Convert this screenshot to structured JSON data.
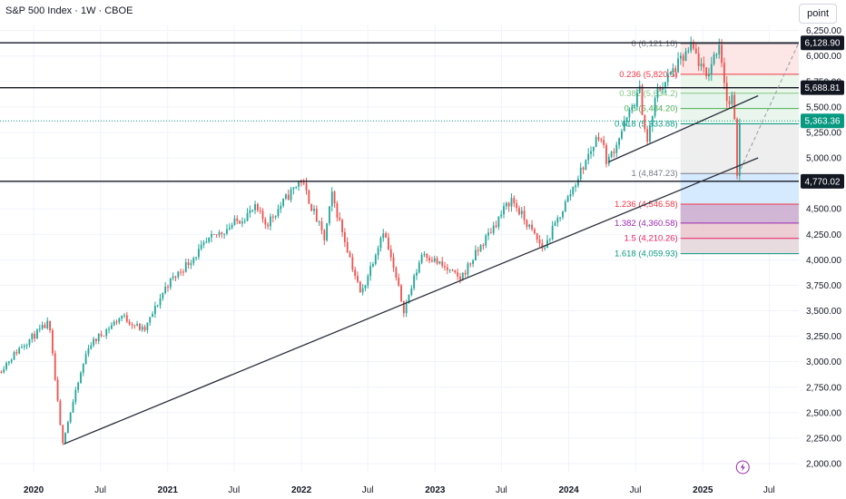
{
  "header": {
    "title": "S&P 500 Index · 1W · CBOE",
    "unit_button": "point"
  },
  "colors": {
    "up": "#26a69a",
    "down": "#ef5350",
    "line": "#131722",
    "grid": "#f0f3fa"
  },
  "chart_data": {
    "type": "candlestick",
    "title": "S&P 500 Index · 1W · CBOE",
    "y_axis": {
      "ticks": [
        2000,
        2250,
        2500,
        2750,
        3000,
        3250,
        3500,
        3750,
        4000,
        4250,
        4500,
        4750,
        5000,
        5250,
        5500,
        5750,
        6000,
        6250
      ],
      "tick_labels": [
        "2,000.00",
        "2,250.00",
        "2,500.00",
        "2,750.00",
        "3,000.00",
        "3,250.00",
        "3,500.00",
        "3,750.00",
        "4,000.00",
        "4,250.00",
        "4,500.00",
        "4,750.00",
        "5,000.00",
        "5,250.00",
        "5,500.00",
        "5,750.00",
        "6,000.00",
        "6,250.00"
      ],
      "range": [
        1920,
        6300
      ]
    },
    "x_axis": {
      "range": [
        "2019-10-01",
        "2025-09-20"
      ],
      "ticks": [
        {
          "date": "2020-01-01",
          "label": "2020",
          "major": true
        },
        {
          "date": "2020-07-01",
          "label": "Jul",
          "major": false
        },
        {
          "date": "2021-01-01",
          "label": "2021",
          "major": true
        },
        {
          "date": "2021-07-01",
          "label": "Jul",
          "major": false
        },
        {
          "date": "2022-01-01",
          "label": "2022",
          "major": true
        },
        {
          "date": "2022-07-01",
          "label": "Jul",
          "major": false
        },
        {
          "date": "2023-01-01",
          "label": "2023",
          "major": true
        },
        {
          "date": "2023-07-01",
          "label": "Jul",
          "major": false
        },
        {
          "date": "2024-01-01",
          "label": "2024",
          "major": true
        },
        {
          "date": "2024-07-01",
          "label": "Jul",
          "major": false
        },
        {
          "date": "2025-01-01",
          "label": "2025",
          "major": true
        },
        {
          "date": "2025-07-01",
          "label": "Jul",
          "major": false
        }
      ]
    },
    "price_path": [
      [
        "2019-10-01",
        2900
      ],
      [
        "2019-12-01",
        3150
      ],
      [
        "2020-02-15",
        3380
      ],
      [
        "2020-03-22",
        2200
      ],
      [
        "2020-06-01",
        3150
      ],
      [
        "2020-09-01",
        3450
      ],
      [
        "2020-11-01",
        3300
      ],
      [
        "2021-01-01",
        3750
      ],
      [
        "2021-05-01",
        4200
      ],
      [
        "2021-09-01",
        4500
      ],
      [
        "2021-10-01",
        4350
      ],
      [
        "2022-01-03",
        4790
      ],
      [
        "2022-03-08",
        4200
      ],
      [
        "2022-03-29",
        4630
      ],
      [
        "2022-06-16",
        3650
      ],
      [
        "2022-08-16",
        4300
      ],
      [
        "2022-10-12",
        3500
      ],
      [
        "2022-12-01",
        4080
      ],
      [
        "2023-03-13",
        3810
      ],
      [
        "2023-07-31",
        4600
      ],
      [
        "2023-10-27",
        4100
      ],
      [
        "2024-03-28",
        5250
      ],
      [
        "2024-04-19",
        4950
      ],
      [
        "2024-07-16",
        5660
      ],
      [
        "2024-08-05",
        5130
      ],
      [
        "2024-09-01",
        5650
      ],
      [
        "2024-12-06",
        6090
      ],
      [
        "2025-01-13",
        5780
      ],
      [
        "2025-02-19",
        6140
      ],
      [
        "2025-03-13",
        5500
      ],
      [
        "2025-03-28",
        5600
      ],
      [
        "2025-04-08",
        4850
      ],
      [
        "2025-04-11",
        5363
      ]
    ],
    "last_price": 5363.36,
    "horizontal_levels": [
      6128.9,
      5688.81,
      4770.02
    ],
    "trendlines": [
      {
        "from": [
          "2020-03-23",
          2192
        ],
        "to": [
          "2025-06-01",
          5000
        ]
      },
      {
        "from": [
          "2024-04-19",
          4960
        ],
        "to": [
          "2025-06-01",
          5610
        ]
      },
      {
        "from": [
          "2025-04-07",
          4835
        ],
        "to": [
          "2025-09-20",
          6130
        ],
        "dashed": true
      }
    ],
    "fibonacci": {
      "start_date": "2024-11-01",
      "end_date": "2025-09-20",
      "levels": [
        {
          "ratio": "0",
          "value": 6121.18,
          "label": "0 (6,121.18)",
          "color": "#787b86",
          "fill": "#fde2e2"
        },
        {
          "ratio": "0.236",
          "value": 5820.5,
          "label": "0.236 (5,820.5)",
          "color": "#f23645",
          "fill": "#e8f5e9"
        },
        {
          "ratio": "0.382",
          "value": 5634.2,
          "label": "0.382 (5,634.2)",
          "color": "#81c784",
          "fill": "#e0f2e9"
        },
        {
          "ratio": "0.5",
          "value": 5484.2,
          "label": "0.5 (5,484.20)",
          "color": "#4caf50",
          "fill": "#e6f4ea"
        },
        {
          "ratio": "0.618",
          "value": 5333.88,
          "label": "0.618 (5,333.88)",
          "color": "#089981",
          "fill": "#ebebeb"
        },
        {
          "ratio": "1",
          "value": 4847.23,
          "label": "1 (4,847.23)",
          "color": "#787b86",
          "fill": "#cfe6ff"
        },
        {
          "ratio": "1.236",
          "value": 4546.58,
          "label": "1.236 (4,546.58)",
          "color": "#f23645",
          "fill": "#c9a9cf"
        },
        {
          "ratio": "1.382",
          "value": 4360.58,
          "label": "1.382 (4,360.58)",
          "color": "#9c27b0",
          "fill": "#e9c5cd"
        },
        {
          "ratio": "1.5",
          "value": 4210.26,
          "label": "1.5 (4,210.26)",
          "color": "#e91e63",
          "fill": "#e3d5da"
        },
        {
          "ratio": "1.618",
          "value": 4059.93,
          "label": "1.618 (4,059.93)",
          "color": "#089981",
          "fill": null
        }
      ]
    },
    "price_tags": [
      {
        "value": 6128.9,
        "label": "6,128.90",
        "bg": "#131722",
        "fg": "#ffffff"
      },
      {
        "value": 5688.81,
        "label": "5,688.81",
        "bg": "#131722",
        "fg": "#ffffff"
      },
      {
        "value": 5363.36,
        "label": "5,363.36",
        "bg": "#089981",
        "fg": "#ffffff"
      },
      {
        "value": 4770.02,
        "label": "4,770.02",
        "bg": "#131722",
        "fg": "#ffffff"
      }
    ],
    "events": [
      {
        "date": "2025-04-20",
        "icon": "lightning-icon"
      }
    ]
  }
}
